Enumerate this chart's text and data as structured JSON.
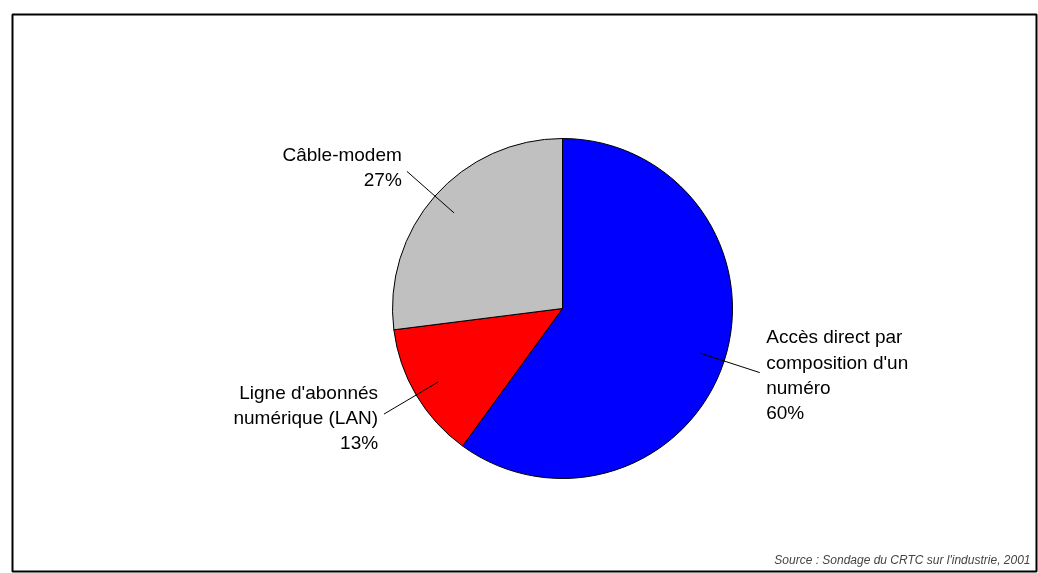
{
  "chart_data": {
    "type": "pie",
    "categories": [
      "Accès direct par\ncomposition d'un\nnuméro",
      "Ligne d'abonnés\nnumérique (LAN)",
      "Câble-modem"
    ],
    "values": [
      60,
      13,
      27
    ],
    "value_labels": [
      "60%",
      "13%",
      "27%"
    ],
    "colors": [
      "#0000ff",
      "#ff0000",
      "#c0c0c0"
    ],
    "legend": false,
    "annotations": [
      "Source : Sondage du CRTC sur l'industrie, 2001"
    ]
  }
}
